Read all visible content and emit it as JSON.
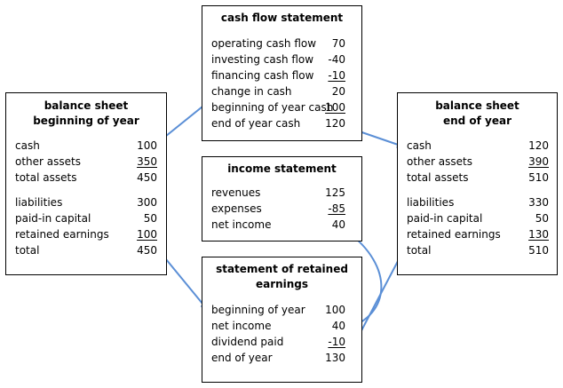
{
  "colors": {
    "arrow": "#5b8fd6",
    "border": "#000000"
  },
  "balance_begin": {
    "title_line1": "balance sheet",
    "title_line2": "beginning of year",
    "rows": [
      {
        "label": "cash",
        "value": "100",
        "underline": false
      },
      {
        "label": "other assets",
        "value": "350",
        "underline": true
      },
      {
        "label": "total assets",
        "value": "450",
        "underline": false
      },
      {
        "label": "liabilities",
        "value": "300",
        "underline": false
      },
      {
        "label": "paid-in capital",
        "value": "50",
        "underline": false
      },
      {
        "label": "retained earnings",
        "value": "100",
        "underline": true
      },
      {
        "label": "total",
        "value": "450",
        "underline": false
      }
    ]
  },
  "cash_flow": {
    "title": "cash flow statement",
    "rows": [
      {
        "label": "operating cash flow",
        "value": "70",
        "underline": false
      },
      {
        "label": "investing cash flow",
        "value": "-40",
        "underline": false
      },
      {
        "label": "financing cash flow",
        "value": "-10",
        "underline": true
      },
      {
        "label": "change in cash",
        "value": "20",
        "underline": false
      },
      {
        "label": "beginning of year cash",
        "value": "100",
        "underline": true
      },
      {
        "label": "end of year cash",
        "value": "120",
        "underline": false
      }
    ]
  },
  "income": {
    "title": "income statement",
    "rows": [
      {
        "label": "revenues",
        "value": "125",
        "underline": false
      },
      {
        "label": "expenses",
        "value": "-85",
        "underline": true
      },
      {
        "label": "net income",
        "value": "40",
        "underline": false
      }
    ]
  },
  "retained": {
    "title_line1": "statement of retained",
    "title_line2": "earnings",
    "rows": [
      {
        "label": "beginning of year",
        "value": "100",
        "underline": false
      },
      {
        "label": "net income",
        "value": "40",
        "underline": false
      },
      {
        "label": "dividend paid",
        "value": "-10",
        "underline": true
      },
      {
        "label": "end of year",
        "value": "130",
        "underline": false
      }
    ]
  },
  "balance_end": {
    "title_line1": "balance sheet",
    "title_line2": "end of year",
    "rows": [
      {
        "label": "cash",
        "value": "120",
        "underline": false
      },
      {
        "label": "other assets",
        "value": "390",
        "underline": true
      },
      {
        "label": "total assets",
        "value": "510",
        "underline": false
      },
      {
        "label": "liabilities",
        "value": "330",
        "underline": false
      },
      {
        "label": "paid-in capital",
        "value": "50",
        "underline": false
      },
      {
        "label": "retained earnings",
        "value": "130",
        "underline": true
      },
      {
        "label": "total",
        "value": "510",
        "underline": false
      }
    ]
  }
}
